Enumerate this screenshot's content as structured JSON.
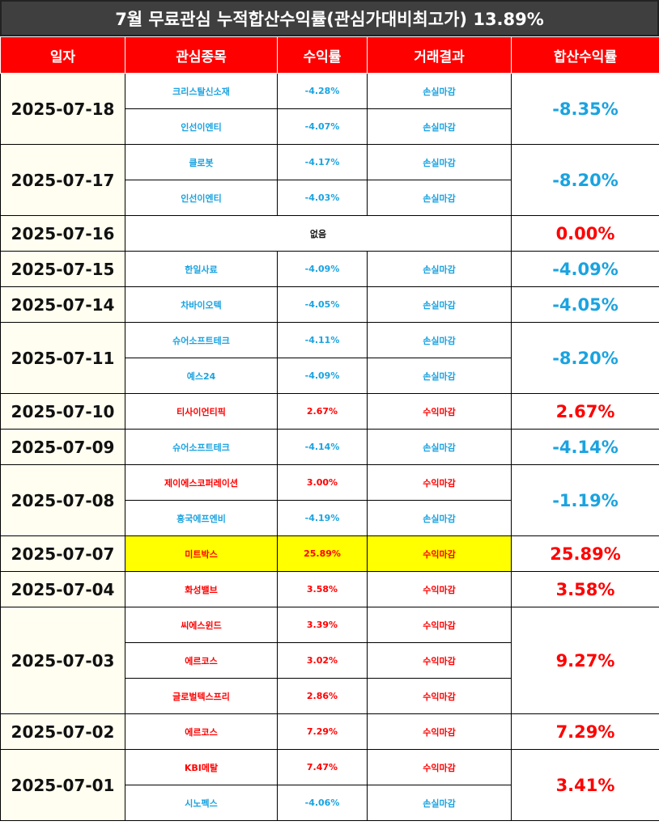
{
  "title": "7월 무료관심 누적합산수익률(관심가대비최고가) 13.89%",
  "headers": [
    "일자",
    "관심종목",
    "수익률",
    "거래결과",
    "합산수익률"
  ],
  "colors": {
    "loss": "#1aa3e0",
    "profit": "#ff0000",
    "header_bg": "#ff0000",
    "title_bg": "#3f3f3f",
    "highlight": "#ffff00"
  },
  "groups": [
    {
      "date": "2025-07-18",
      "total": "-8.35%",
      "total_color": "blue",
      "items": [
        {
          "stock": "크리스탈신소재",
          "ret": "-4.28%",
          "result": "손실마감",
          "color": "blue"
        },
        {
          "stock": "인선이엔티",
          "ret": "-4.07%",
          "result": "손실마감",
          "color": "blue"
        }
      ]
    },
    {
      "date": "2025-07-17",
      "total": "-8.20%",
      "total_color": "blue",
      "items": [
        {
          "stock": "클로봇",
          "ret": "-4.17%",
          "result": "손실마감",
          "color": "blue"
        },
        {
          "stock": "인선이엔티",
          "ret": "-4.03%",
          "result": "손실마감",
          "color": "blue"
        }
      ]
    },
    {
      "date": "2025-07-16",
      "total": "0.00%",
      "total_color": "red",
      "none": "없음",
      "items": []
    },
    {
      "date": "2025-07-15",
      "total": "-4.09%",
      "total_color": "blue",
      "items": [
        {
          "stock": "한일사료",
          "ret": "-4.09%",
          "result": "손실마감",
          "color": "blue"
        }
      ]
    },
    {
      "date": "2025-07-14",
      "total": "-4.05%",
      "total_color": "blue",
      "items": [
        {
          "stock": "차바이오텍",
          "ret": "-4.05%",
          "result": "손실마감",
          "color": "blue"
        }
      ]
    },
    {
      "date": "2025-07-11",
      "total": "-8.20%",
      "total_color": "blue",
      "items": [
        {
          "stock": "슈어소프트테크",
          "ret": "-4.11%",
          "result": "손실마감",
          "color": "blue"
        },
        {
          "stock": "예스24",
          "ret": "-4.09%",
          "result": "손실마감",
          "color": "blue"
        }
      ]
    },
    {
      "date": "2025-07-10",
      "total": "2.67%",
      "total_color": "red",
      "items": [
        {
          "stock": "티사이언티픽",
          "ret": "2.67%",
          "result": "수익마감",
          "color": "red"
        }
      ]
    },
    {
      "date": "2025-07-09",
      "total": "-4.14%",
      "total_color": "blue",
      "items": [
        {
          "stock": "슈어소프트테크",
          "ret": "-4.14%",
          "result": "손실마감",
          "color": "blue"
        }
      ]
    },
    {
      "date": "2025-07-08",
      "total": "-1.19%",
      "total_color": "blue",
      "items": [
        {
          "stock": "제이에스코퍼레이션",
          "ret": "3.00%",
          "result": "수익마감",
          "color": "red"
        },
        {
          "stock": "흥국에프엔비",
          "ret": "-4.19%",
          "result": "손실마감",
          "color": "blue"
        }
      ]
    },
    {
      "date": "2025-07-07",
      "total": "25.89%",
      "total_color": "red",
      "highlight": true,
      "items": [
        {
          "stock": "미트박스",
          "ret": "25.89%",
          "result": "수익마감",
          "color": "red"
        }
      ]
    },
    {
      "date": "2025-07-04",
      "total": "3.58%",
      "total_color": "red",
      "items": [
        {
          "stock": "화성밸브",
          "ret": "3.58%",
          "result": "수익마감",
          "color": "red"
        }
      ]
    },
    {
      "date": "2025-07-03",
      "total": "9.27%",
      "total_color": "red",
      "items": [
        {
          "stock": "씨에스윈드",
          "ret": "3.39%",
          "result": "수익마감",
          "color": "red"
        },
        {
          "stock": "에르코스",
          "ret": "3.02%",
          "result": "수익마감",
          "color": "red"
        },
        {
          "stock": "글로벌텍스프리",
          "ret": "2.86%",
          "result": "수익마감",
          "color": "red"
        }
      ]
    },
    {
      "date": "2025-07-02",
      "total": "7.29%",
      "total_color": "red",
      "items": [
        {
          "stock": "에르코스",
          "ret": "7.29%",
          "result": "수익마감",
          "color": "red"
        }
      ]
    },
    {
      "date": "2025-07-01",
      "total": "3.41%",
      "total_color": "red",
      "items": [
        {
          "stock": "KBI메탈",
          "ret": "7.47%",
          "result": "수익마감",
          "color": "red"
        },
        {
          "stock": "시노펙스",
          "ret": "-4.06%",
          "result": "손실마감",
          "color": "blue"
        }
      ]
    }
  ]
}
